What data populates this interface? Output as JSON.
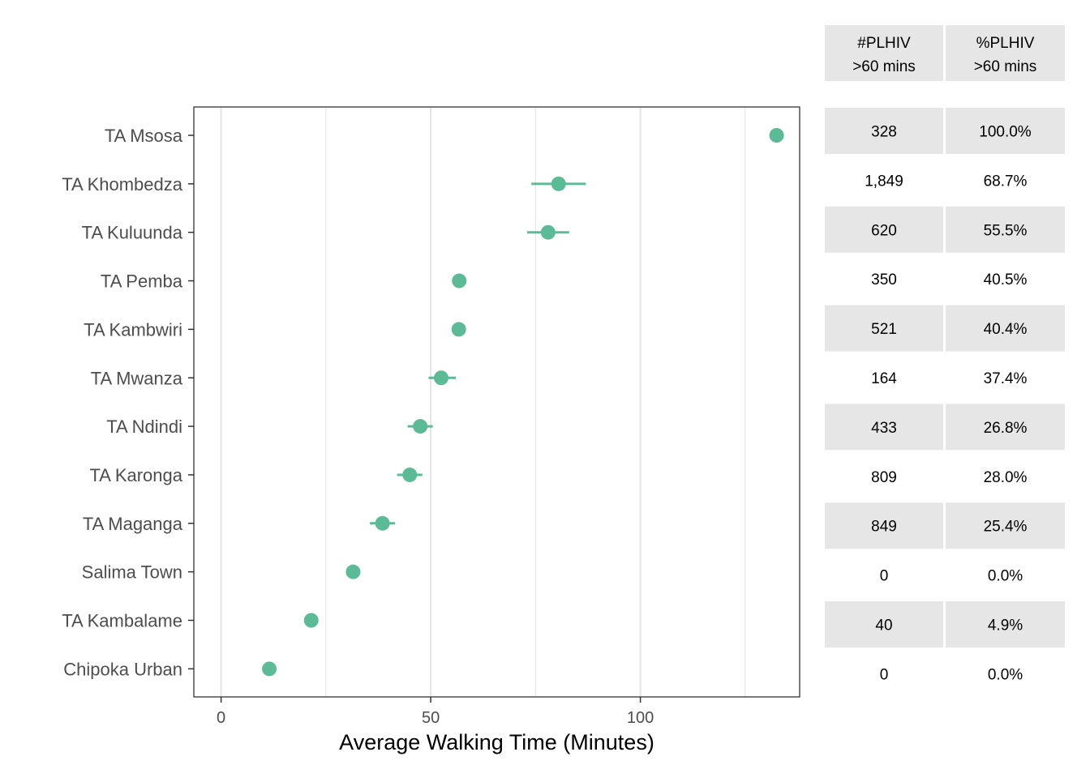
{
  "colors": {
    "point": "#5bbb96",
    "grid": "#e6e6e6",
    "panel_border": "#333333",
    "table_shade": "#e6e6e6"
  },
  "chart_data": {
    "type": "scatter",
    "xlabel": "Average Walking Time (Minutes)",
    "ylabel": "",
    "xlim": [
      -6.5,
      138
    ],
    "x_ticks": [
      0,
      50,
      100
    ],
    "x_minor_gridlines": [
      25,
      75,
      125
    ],
    "grid": true,
    "categories": [
      "TA Msosa",
      "TA Khombedza",
      "TA Kuluunda",
      "TA Pemba",
      "TA Kambwiri",
      "TA Mwanza",
      "TA Ndindi",
      "TA Karonga",
      "TA Maganga",
      "Salima Town",
      "TA Kambalame",
      "Chipoka Urban"
    ],
    "values": [
      132.5,
      80.5,
      78,
      56.8,
      56.7,
      52.5,
      47.5,
      45,
      38.5,
      31.5,
      21.5,
      11.5
    ],
    "error_low": [
      132.5,
      74,
      73,
      56.8,
      56.7,
      49.5,
      44.5,
      42,
      35.5,
      31.5,
      21.5,
      11.5
    ],
    "error_high": [
      132.5,
      87,
      83,
      56.8,
      56.7,
      56,
      50.5,
      48,
      41.5,
      31.5,
      21.5,
      11.5
    ]
  },
  "table": {
    "headers": [
      {
        "line1": "#PLHIV",
        "line2": ">60 mins"
      },
      {
        "line1": "%PLHIV",
        "line2": ">60 mins"
      }
    ],
    "rows": [
      [
        "328",
        "100.0%"
      ],
      [
        "1,849",
        "68.7%"
      ],
      [
        "620",
        "55.5%"
      ],
      [
        "350",
        "40.5%"
      ],
      [
        "521",
        "40.4%"
      ],
      [
        "164",
        "37.4%"
      ],
      [
        "433",
        "26.8%"
      ],
      [
        "809",
        "28.0%"
      ],
      [
        "849",
        "25.4%"
      ],
      [
        "0",
        "0.0%"
      ],
      [
        "40",
        "4.9%"
      ],
      [
        "0",
        "0.0%"
      ]
    ]
  }
}
